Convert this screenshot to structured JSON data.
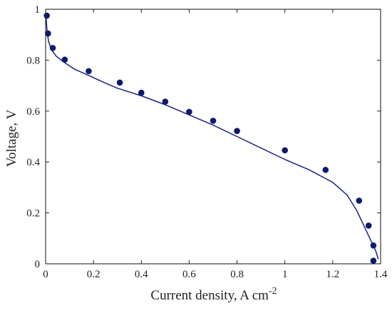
{
  "chart_data": {
    "type": "scatter",
    "title": "",
    "xlabel": "Current density, A cm",
    "xlabel_superscript": "-2",
    "ylabel": "Voltage, V",
    "xlim": [
      0,
      1.4
    ],
    "ylim": [
      0,
      1
    ],
    "x_ticks": [
      0,
      0.2,
      0.4,
      0.6,
      0.8,
      1,
      1.2,
      1.4
    ],
    "x_tick_labels": [
      "0",
      "0.2",
      "0.4",
      "0.6",
      "0.8",
      "1",
      "1.2",
      "1.4"
    ],
    "y_ticks": [
      0,
      0.2,
      0.4,
      0.6,
      0.8,
      1
    ],
    "y_tick_labels": [
      "0",
      "0.2",
      "0.4",
      "0.6",
      "0.8",
      "1"
    ],
    "grid": false,
    "colors": {
      "marker": "#0b1a6b",
      "line": "#1b237e",
      "axis": "#222222"
    },
    "series": [
      {
        "kind": "points",
        "x": [
          0.005,
          0.01,
          0.03,
          0.08,
          0.18,
          0.31,
          0.4,
          0.5,
          0.6,
          0.7,
          0.8,
          1.0,
          1.17,
          1.31,
          1.35,
          1.37,
          1.37
        ],
        "y": [
          0.975,
          0.905,
          0.848,
          0.802,
          0.757,
          0.712,
          0.672,
          0.637,
          0.597,
          0.562,
          0.522,
          0.446,
          0.369,
          0.248,
          0.15,
          0.072,
          0.012
        ]
      },
      {
        "kind": "line",
        "x": [
          0.002,
          0.006,
          0.012,
          0.025,
          0.045,
          0.08,
          0.12,
          0.18,
          0.25,
          0.3,
          0.4,
          0.5,
          0.6,
          0.7,
          0.8,
          0.9,
          1.0,
          1.1,
          1.2,
          1.26,
          1.3,
          1.33,
          1.35,
          1.365,
          1.38,
          1.39
        ],
        "y": [
          0.97,
          0.915,
          0.875,
          0.84,
          0.815,
          0.79,
          0.765,
          0.74,
          0.71,
          0.69,
          0.66,
          0.625,
          0.585,
          0.545,
          0.5,
          0.455,
          0.41,
          0.37,
          0.32,
          0.27,
          0.21,
          0.15,
          0.11,
          0.08,
          0.05,
          0.02
        ]
      }
    ]
  }
}
